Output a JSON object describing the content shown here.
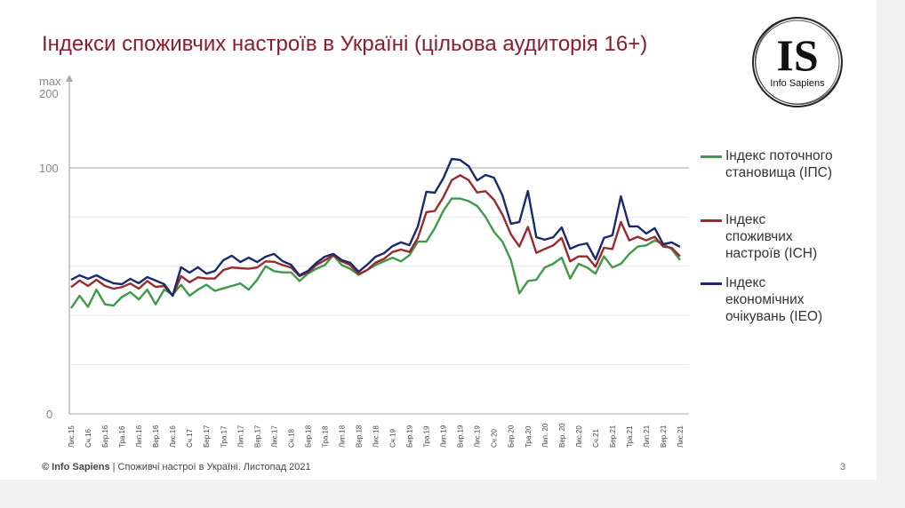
{
  "title": "Індекси споживчих настроїв в Україні (цільова аудиторія 16+)",
  "logo": {
    "letters": "IS",
    "name": "Info Sapiens"
  },
  "footer": {
    "brand": "© Info Sapiens",
    "separator": " | ",
    "text": "Споживчі настрої в Україні. Листопад 2021"
  },
  "page_number": "3",
  "chart_data": {
    "type": "line",
    "title": "",
    "xlabel": "",
    "ylabel": "",
    "ylim": [
      0,
      200
    ],
    "y_ticks": [
      {
        "value": 0,
        "label": "0"
      },
      {
        "value": 100,
        "label": "100"
      },
      {
        "value": 200,
        "label": "max\n200"
      }
    ],
    "y_tick_max_label": "max",
    "y_tick_max_value": "200",
    "grid": true,
    "legend_position": "right",
    "x_frequency": "monthly",
    "x_start": "Лис.15",
    "x_end": "Лис.21",
    "x_tick_labels": [
      "Лис.15",
      "Сч.16",
      "Бер.16",
      "Тра.16",
      "Лип.16",
      "Вер.16",
      "Лис.16",
      "Сч.17",
      "Бер.17",
      "Тра.17",
      "Лип.17",
      "Вер.17",
      "Лис.17",
      "Сч.18",
      "Бер.18",
      "Тра.18",
      "Лип.18",
      "Вер.18",
      "Лис.18",
      "Сч.19",
      "Бер.19",
      "Тра.19",
      "Лип.19",
      "Вер.19",
      "Лис.19",
      "Сч.20",
      "Бер.20",
      "Тра.20",
      "Лип. 20",
      "Вер. 20",
      "Лис.20",
      "Сч.21",
      "Бер.21",
      "Тра.21",
      "Лип.21",
      "Вер.21",
      "Лис.21"
    ],
    "series": [
      {
        "name": "Індекс поточного становища (ІПС)",
        "color": "#3e9a48",
        "values": [
          43.0,
          48.0,
          43.5,
          50.5,
          44.5,
          44.0,
          47.5,
          49.5,
          46.5,
          50.5,
          44.5,
          50.5,
          48.5,
          52.5,
          48.0,
          50.5,
          52.5,
          50.0,
          51.0,
          52.0,
          53.0,
          50.5,
          54.5,
          60.0,
          58.0,
          57.5,
          57.5,
          54.0,
          57.0,
          59.0,
          60.5,
          64.5,
          60.5,
          59.0,
          56.5,
          58.5,
          60.5,
          62.0,
          63.5,
          62.0,
          64.5,
          70.0,
          70.0,
          75.5,
          82.5,
          87.5,
          87.5,
          86.5,
          84.5,
          80.0,
          74.0,
          70.0,
          62.5,
          49.0,
          54.0,
          54.5,
          59.5,
          61.0,
          63.5,
          55.0,
          61.0,
          59.5,
          57.0,
          64.0,
          59.5,
          61.0,
          65.0,
          68.0,
          68.5,
          70.5,
          69.0,
          67.0,
          62.5
        ]
      },
      {
        "name": "Індекс споживчих настроїв (ІСН)",
        "color": "#9b2a2f",
        "values": [
          51.5,
          54.2,
          52.0,
          54.5,
          52.0,
          50.9,
          51.5,
          53.0,
          50.9,
          54.0,
          51.6,
          52.0,
          48.0,
          56.0,
          53.5,
          55.5,
          55.0,
          55.0,
          58.5,
          59.5,
          59.2,
          59.0,
          59.5,
          62.0,
          61.8,
          60.5,
          59.5,
          56.0,
          57.5,
          60.5,
          62.5,
          64.5,
          62.0,
          60.5,
          56.8,
          58.5,
          61.5,
          63.0,
          65.8,
          66.8,
          65.8,
          71.5,
          82.0,
          82.5,
          88.0,
          95.0,
          97.0,
          95.0,
          90.0,
          90.5,
          87.0,
          81.0,
          73.0,
          68.0,
          76.0,
          65.5,
          67.0,
          68.5,
          71.5,
          62.0,
          64.0,
          64.0,
          59.8,
          67.5,
          67.0,
          78.0,
          70.5,
          72.0,
          70.5,
          72.0,
          68.0,
          67.5,
          64.0
        ]
      },
      {
        "name": "Індекс економічних очікувань (ІЕО)",
        "color": "#1b2a6b",
        "values": [
          54.5,
          56.3,
          54.9,
          56.3,
          54.5,
          53.1,
          52.7,
          54.9,
          53.1,
          55.6,
          54.2,
          52.7,
          48.0,
          59.6,
          57.4,
          59.6,
          57.0,
          58.1,
          62.5,
          64.3,
          61.7,
          63.5,
          61.7,
          63.9,
          65.0,
          62.1,
          60.6,
          56.3,
          58.1,
          61.4,
          63.9,
          65.0,
          62.5,
          61.4,
          57.8,
          60.6,
          63.9,
          65.3,
          68.2,
          69.7,
          68.6,
          76.2,
          90.3,
          89.9,
          95.7,
          103.6,
          103.2,
          100.7,
          94.9,
          97.1,
          96.0,
          88.8,
          77.3,
          78.0,
          90.6,
          71.8,
          70.8,
          71.8,
          75.8,
          67.1,
          68.6,
          69.3,
          62.8,
          71.5,
          72.6,
          88.4,
          76.2,
          76.2,
          73.3,
          75.5,
          69.0,
          69.7,
          67.9
        ]
      }
    ],
    "legend": [
      {
        "lines": [
          "Індекс поточного",
          "становища (ІПС)"
        ]
      },
      {
        "lines": [
          "Індекс",
          "споживчих",
          "настроїв (ІСН)"
        ]
      },
      {
        "lines": [
          "Індекс",
          "економічних",
          "очікувань (ІЕО)"
        ]
      }
    ]
  }
}
